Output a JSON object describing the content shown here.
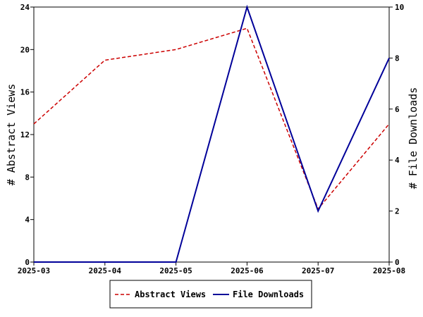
{
  "chart_data": {
    "type": "line",
    "x": [
      "2025-03",
      "2025-04",
      "2025-05",
      "2025-06",
      "2025-07",
      "2025-08"
    ],
    "series": [
      {
        "name": "Abstract Views",
        "axis": "left",
        "color": "#cc0000",
        "dash": "dashed",
        "values": [
          13,
          19,
          20,
          22,
          5,
          13
        ]
      },
      {
        "name": "File Downloads",
        "axis": "right",
        "color": "#000099",
        "dash": "solid",
        "values": [
          0,
          0,
          0,
          10,
          2,
          8
        ]
      }
    ],
    "ylabel_left": "# Abstract Views",
    "ylabel_right": "# File Downloads",
    "ylim_left": [
      0,
      24
    ],
    "yticks_left": [
      0,
      4,
      8,
      12,
      16,
      20,
      24
    ],
    "ylim_right": [
      0,
      10
    ],
    "yticks_right": [
      0,
      2,
      4,
      6,
      8,
      10
    ],
    "grid": false,
    "legend_position": "bottom-center"
  }
}
